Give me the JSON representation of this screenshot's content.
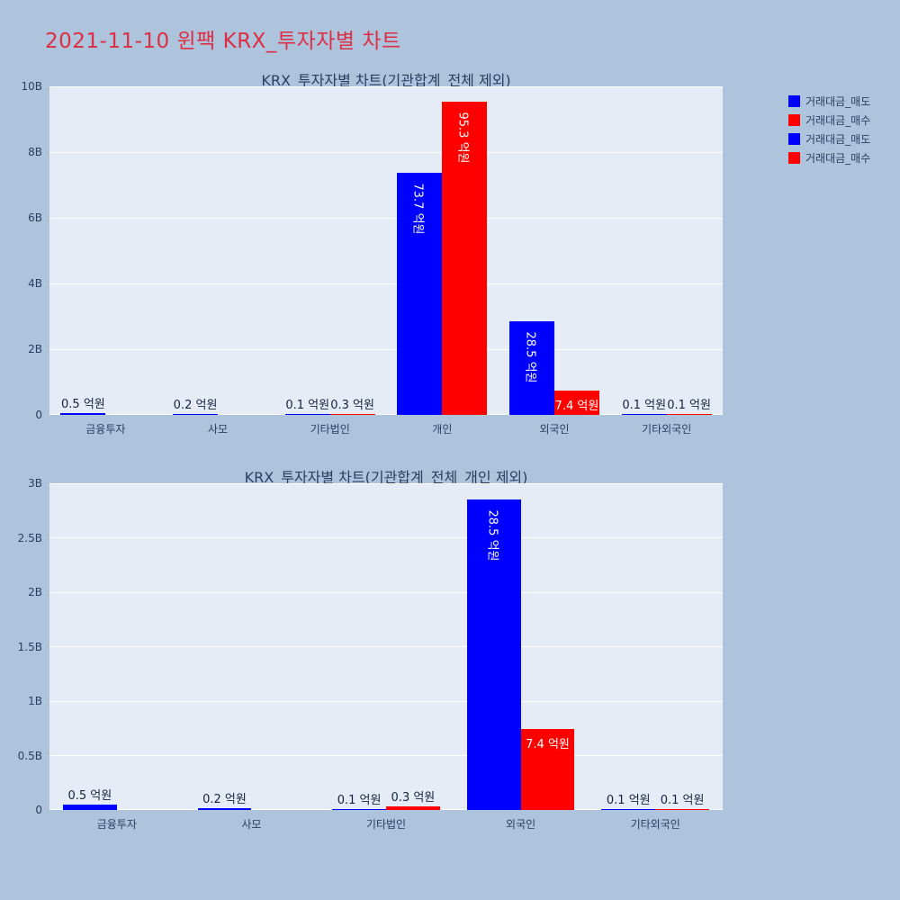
{
  "page_title": "2021-11-10 윈팩 KRX_투자자별 차트",
  "colors": {
    "sell": "#0000ff",
    "buy": "#ff0000",
    "page_background": "#aec3dc",
    "plot_background": "#e5ecf6",
    "title_text": "#dc2f45",
    "axis_text": "#2a3f5f",
    "gridline": "#ffffff"
  },
  "legend": {
    "items": [
      {
        "label": "거래대금_매도",
        "color": "#0000ff"
      },
      {
        "label": "거래대금_매수",
        "color": "#ff0000"
      },
      {
        "label": "거래대금_매도",
        "color": "#0000ff"
      },
      {
        "label": "거래대금_매수",
        "color": "#ff0000"
      }
    ]
  },
  "chart_data": [
    {
      "type": "bar",
      "title": "KRX_투자자별 차트(기관합계_전체 제외)",
      "unit": "억원",
      "categories": [
        "금융투자",
        "사모",
        "기타법인",
        "개인",
        "외국인",
        "기타외국인"
      ],
      "series": [
        {
          "name": "거래대금_매도",
          "color": "#0000ff",
          "values": [
            0.5,
            0.2,
            0.1,
            73.7,
            28.5,
            0.1
          ],
          "labels": [
            "0.5 억원",
            "0.2 억원",
            "0.1 억원",
            "73.7 억원",
            "28.5 억원",
            "0.1 억원"
          ],
          "label_pos": [
            "outside",
            "outside",
            "outside",
            "inside-v",
            "inside-v",
            "outside"
          ]
        },
        {
          "name": "거래대금_매수",
          "color": "#ff0000",
          "values": [
            null,
            null,
            0.3,
            95.3,
            7.4,
            0.1
          ],
          "labels": [
            "",
            "",
            "0.3 억원",
            "95.3 억원",
            "7.4 억원",
            "0.1 억원"
          ],
          "label_pos": [
            "none",
            "none",
            "outside",
            "inside-v",
            "inside-h",
            "outside"
          ]
        }
      ],
      "ylim": [
        0,
        100
      ],
      "yticks": [
        "0",
        "2B",
        "4B",
        "6B",
        "8B",
        "10B"
      ],
      "grid": true,
      "legend_position": "top-right"
    },
    {
      "type": "bar",
      "title": "KRX_투자자별 차트(기관합계_전체_개인 제외)",
      "unit": "억원",
      "categories": [
        "금융투자",
        "사모",
        "기타법인",
        "외국인",
        "기타외국인"
      ],
      "series": [
        {
          "name": "거래대금_매도",
          "color": "#0000ff",
          "values": [
            0.5,
            0.2,
            0.1,
            28.5,
            0.1
          ],
          "labels": [
            "0.5 억원",
            "0.2 억원",
            "0.1 억원",
            "28.5 억원",
            "0.1 억원"
          ],
          "label_pos": [
            "outside",
            "outside",
            "outside",
            "inside-v",
            "outside"
          ]
        },
        {
          "name": "거래대금_매수",
          "color": "#ff0000",
          "values": [
            null,
            null,
            0.3,
            7.4,
            0.1
          ],
          "labels": [
            "",
            "",
            "0.3 억원",
            "7.4 억원",
            "0.1 억원"
          ],
          "label_pos": [
            "none",
            "none",
            "outside",
            "inside-h",
            "outside"
          ]
        }
      ],
      "ylim": [
        0,
        30
      ],
      "yticks": [
        "0",
        "0.5B",
        "1B",
        "1.5B",
        "2B",
        "2.5B",
        "3B"
      ],
      "grid": true,
      "legend_position": "top-right"
    }
  ]
}
